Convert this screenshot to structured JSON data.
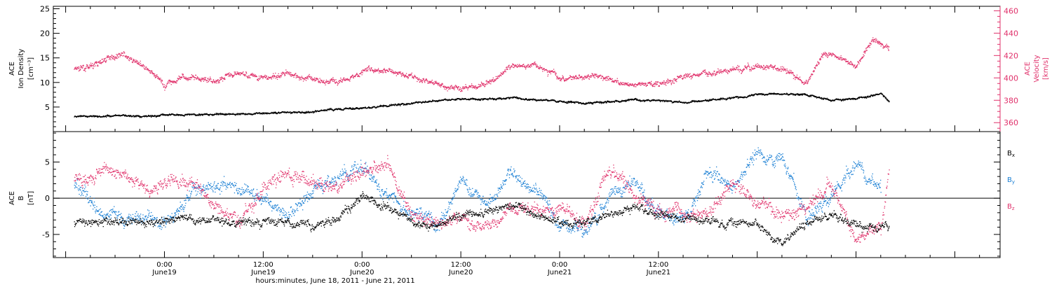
{
  "chart_data": {
    "type": "scatter",
    "x_axis": {
      "label": "hours:minutes, June 18, 2011 - June 21, 2011",
      "ticks": [
        {
          "time": "0:00",
          "date": "June19"
        },
        {
          "time": "12:00",
          "date": "June19"
        },
        {
          "time": "0:00",
          "date": "June20"
        },
        {
          "time": "12:00",
          "date": "June20"
        },
        {
          "time": "0:00",
          "date": "June21"
        },
        {
          "time": "12:00",
          "date": "June21"
        }
      ]
    },
    "panels": [
      {
        "id": "density-velocity",
        "ylabel_left": [
          "ACE",
          "Ion Density",
          "[cm⁻³]"
        ],
        "ylabel_right": [
          "ACE",
          "Velocity",
          "[km/s]"
        ],
        "ylim_left": [
          0,
          25.5
        ],
        "yticks_left": [
          5,
          10,
          15,
          20,
          25
        ],
        "ylim_right": [
          352,
          464
        ],
        "yticks_right": [
          360,
          380,
          400,
          420,
          440,
          460
        ],
        "series": [
          {
            "name": "Ion Density",
            "axis": "left",
            "color": "#000000",
            "x": [
              -11,
              -6,
              -3,
              0,
              3,
              6,
              9,
              12,
              15,
              18,
              21,
              24,
              27,
              30,
              33,
              36,
              39,
              42,
              45,
              48,
              51,
              54,
              57,
              60,
              63,
              66,
              69,
              72,
              75,
              78,
              81,
              84,
              87,
              88
            ],
            "y": [
              3.2,
              3.3,
              3.2,
              3.6,
              3.5,
              3.6,
              3.6,
              3.8,
              4.0,
              4.1,
              4.6,
              4.9,
              5.3,
              5.9,
              6.3,
              6.8,
              6.6,
              7.0,
              6.6,
              6.2,
              5.9,
              6.2,
              6.5,
              6.4,
              6.0,
              6.4,
              7.0,
              7.6,
              7.8,
              7.6,
              6.4,
              6.8,
              7.8,
              6.2
            ]
          },
          {
            "name": "Velocity",
            "axis": "right",
            "color": "#e0306a",
            "x": [
              -11,
              -9,
              -7,
              -5,
              -3,
              0,
              3,
              6,
              9,
              12,
              15,
              18,
              21,
              24,
              27,
              30,
              33,
              36,
              39,
              42,
              45,
              48,
              51,
              54,
              57,
              60,
              63,
              66,
              69,
              72,
              75,
              78,
              80,
              82,
              84,
              86,
              88
            ],
            "y": [
              408,
              410,
              418,
              420,
              412,
              395,
              402,
              398,
              405,
              400,
              404,
              398,
              396,
              407,
              408,
              400,
              396,
              390,
              395,
              410,
              412,
              400,
              403,
              398,
              395,
              395,
              402,
              404,
              408,
              410,
              408,
              395,
              424,
              418,
              412,
              435,
              425
            ]
          }
        ]
      },
      {
        "id": "magnetic-field",
        "ylabel_left": [
          "ACE",
          "B",
          "[nT]"
        ],
        "ylim": [
          -8.2,
          9.2
        ],
        "yticks": [
          -5,
          0,
          5
        ],
        "series": [
          {
            "name": "Bx",
            "label": "B",
            "sub": "x",
            "color": "#000000",
            "x": [
              -11,
              -7,
              -3,
              0,
              3,
              6,
              9,
              12,
              15,
              18,
              21,
              24,
              27,
              30,
              33,
              36,
              39,
              42,
              45,
              48,
              51,
              54,
              57,
              60,
              63,
              66,
              69,
              72,
              75,
              78,
              81,
              84,
              87,
              88
            ],
            "y": [
              -3.5,
              -3.0,
              -3.3,
              -3.2,
              -2.8,
              -3.1,
              -3.2,
              -3.0,
              -3.4,
              -3.8,
              -2.5,
              0.3,
              -1.0,
              -3.3,
              -3.6,
              -2.5,
              -1.6,
              -1.0,
              -2.1,
              -3.3,
              -3.3,
              -2.4,
              -1.3,
              -2.2,
              -2.7,
              -3.0,
              -3.3,
              -3.6,
              -6.4,
              -3.0,
              -2.3,
              -3.6,
              -4.5,
              -4.0
            ]
          },
          {
            "name": "By",
            "label": "B",
            "sub": "y",
            "color": "#1a7fd4",
            "x": [
              -11,
              -8,
              -5,
              -2,
              0,
              3,
              6,
              9,
              12,
              15,
              18,
              21,
              24,
              27,
              30,
              33,
              36,
              39,
              42,
              45,
              48,
              51,
              54,
              57,
              60,
              63,
              66,
              69,
              72,
              75,
              78,
              81,
              84,
              87
            ],
            "y": [
              2.0,
              -1.5,
              -3.0,
              -2.0,
              -3.5,
              0.5,
              1.5,
              2.0,
              0.0,
              -2.5,
              1.0,
              3.0,
              4.0,
              0.5,
              -2.0,
              -3.5,
              2.5,
              -1.0,
              3.5,
              1.5,
              -3.5,
              -4.5,
              0.0,
              2.5,
              -2.0,
              -3.5,
              4.5,
              1.5,
              6.0,
              5.0,
              -2.5,
              0.5,
              4.5,
              1.5
            ]
          },
          {
            "name": "Bz",
            "label": "B",
            "sub": "z",
            "color": "#e0306a",
            "x": [
              -11,
              -8,
              -5,
              -2,
              0,
              3,
              6,
              9,
              12,
              15,
              18,
              21,
              24,
              27,
              30,
              33,
              36,
              39,
              42,
              45,
              48,
              51,
              54,
              57,
              60,
              63,
              66,
              69,
              72,
              75,
              78,
              81,
              84,
              87,
              88
            ],
            "y": [
              2.5,
              3.5,
              3.7,
              1.5,
              2.3,
              3.0,
              -1.0,
              -3.5,
              1.5,
              3.2,
              2.0,
              2.0,
              4.0,
              4.7,
              -2.0,
              -3.5,
              -3.0,
              -3.8,
              -2.0,
              -1.5,
              -1.0,
              -3.5,
              4.0,
              0.5,
              -1.5,
              -2.5,
              -2.0,
              2.0,
              -0.5,
              -2.5,
              -1.5,
              2.0,
              -5.5,
              -3.5,
              4.0
            ]
          }
        ]
      }
    ]
  }
}
